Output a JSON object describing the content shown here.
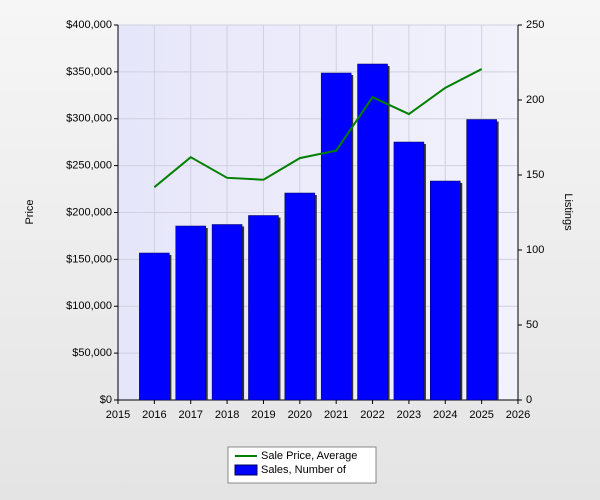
{
  "chart_data": {
    "type": "combo",
    "x": [
      2016,
      2017,
      2018,
      2019,
      2020,
      2021,
      2022,
      2023,
      2024,
      2025
    ],
    "xlim": [
      2015,
      2026
    ],
    "xticks": [
      2015,
      2016,
      2017,
      2018,
      2019,
      2020,
      2021,
      2022,
      2023,
      2024,
      2025,
      2026
    ],
    "ylabel": "Price",
    "y2label": "Listings",
    "ylim": [
      0,
      400000
    ],
    "yticks": [
      {
        "value": 0,
        "label": "$0"
      },
      {
        "value": 50000,
        "label": "$50,000"
      },
      {
        "value": 100000,
        "label": "$100,000"
      },
      {
        "value": 150000,
        "label": "$150,000"
      },
      {
        "value": 200000,
        "label": "$200,000"
      },
      {
        "value": 250000,
        "label": "$250,000"
      },
      {
        "value": 300000,
        "label": "$300,000"
      },
      {
        "value": 350000,
        "label": "$350,000"
      },
      {
        "value": 400000,
        "label": "$400,000"
      }
    ],
    "y2lim": [
      0,
      250
    ],
    "y2ticks": [
      0,
      50,
      100,
      150,
      200,
      250
    ],
    "grid": true,
    "series": [
      {
        "name": "Sale Price, Average",
        "type": "line",
        "color": "#008000",
        "values": [
          227000,
          259000,
          237000,
          235000,
          258000,
          266000,
          323000,
          305000,
          333000,
          353000
        ]
      },
      {
        "name": "Sales, Number of",
        "type": "bar",
        "axis": "y2",
        "color": "#0000ff",
        "values": [
          98,
          116,
          117,
          123,
          138,
          218,
          224,
          172,
          146,
          187
        ]
      }
    ]
  }
}
